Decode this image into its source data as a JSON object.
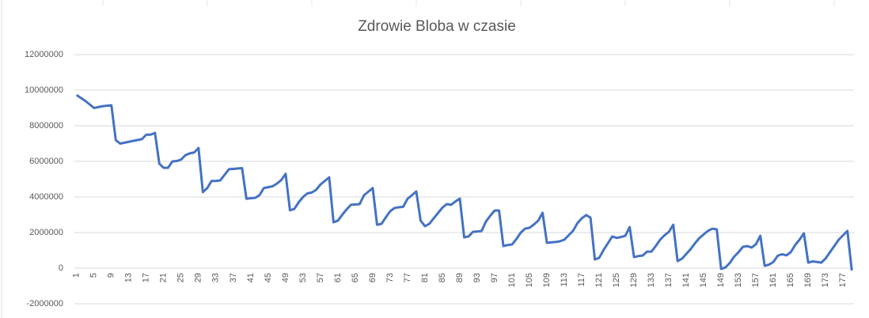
{
  "chart_data": {
    "type": "line",
    "title": "Zdrowie Bloba w czasie",
    "categories": [
      1,
      null,
      null,
      null,
      5,
      null,
      null,
      null,
      9,
      null,
      null,
      null,
      13,
      null,
      null,
      null,
      17,
      null,
      null,
      null,
      21,
      null,
      null,
      null,
      25,
      null,
      null,
      null,
      29,
      null,
      null,
      null,
      33,
      null,
      null,
      null,
      37,
      null,
      null,
      null,
      41,
      null,
      null,
      null,
      45,
      null,
      null,
      null,
      49,
      null,
      null,
      null,
      53,
      null,
      null,
      null,
      57,
      null,
      null,
      null,
      61,
      null,
      null,
      null,
      65,
      null,
      null,
      null,
      69,
      null,
      null,
      null,
      73,
      null,
      null,
      null,
      77,
      null,
      null,
      null,
      81,
      null,
      null,
      null,
      85,
      null,
      null,
      null,
      89,
      null,
      null,
      null,
      93,
      null,
      null,
      null,
      97,
      null,
      null,
      null,
      101,
      null,
      null,
      null,
      105,
      null,
      null,
      null,
      109,
      null,
      null,
      null,
      113,
      null,
      null,
      null,
      117,
      null,
      null,
      null,
      121,
      null,
      null,
      null,
      125,
      null,
      null,
      null,
      129,
      null,
      null,
      null,
      133,
      null,
      null,
      null,
      137,
      null,
      null,
      null,
      141,
      null,
      null,
      null,
      145,
      null,
      null,
      null,
      149,
      null,
      null,
      null,
      153,
      null,
      null,
      null,
      157,
      null,
      null,
      null,
      161,
      null,
      null,
      null,
      165,
      null,
      null,
      null,
      169,
      null,
      null,
      null,
      173,
      null,
      null,
      null,
      177,
      null,
      null
    ],
    "values": [
      9730000,
      9560000,
      9400000,
      9200000,
      9000000,
      9050000,
      9100000,
      9130000,
      9150000,
      7200000,
      7000000,
      7050000,
      7100000,
      7150000,
      7200000,
      7250000,
      7500000,
      7500000,
      7600000,
      5870000,
      5640000,
      5640000,
      6000000,
      6020000,
      6100000,
      6350000,
      6450000,
      6500000,
      6750000,
      4270000,
      4500000,
      4900000,
      4900000,
      4930000,
      5250000,
      5560000,
      5580000,
      5600000,
      5620000,
      3900000,
      3930000,
      3950000,
      4100000,
      4500000,
      4550000,
      4600000,
      4750000,
      4950000,
      5300000,
      3250000,
      3330000,
      3700000,
      4000000,
      4200000,
      4250000,
      4400000,
      4700000,
      4900000,
      5100000,
      2580000,
      2670000,
      3000000,
      3300000,
      3560000,
      3580000,
      3600000,
      4100000,
      4300000,
      4500000,
      2440000,
      2490000,
      2850000,
      3200000,
      3380000,
      3420000,
      3450000,
      3900000,
      4100000,
      4310000,
      2670000,
      2360000,
      2490000,
      2800000,
      3100000,
      3400000,
      3600000,
      3560000,
      3750000,
      3910000,
      1730000,
      1780000,
      2040000,
      2060000,
      2090000,
      2620000,
      2950000,
      3240000,
      3240000,
      1240000,
      1300000,
      1330000,
      1640000,
      2000000,
      2220000,
      2270000,
      2450000,
      2670000,
      3110000,
      1420000,
      1450000,
      1470000,
      1510000,
      1600000,
      1850000,
      2100000,
      2530000,
      2800000,
      2980000,
      2840000,
      490000,
      580000,
      1020000,
      1400000,
      1780000,
      1700000,
      1750000,
      1820000,
      2310000,
      620000,
      680000,
      710000,
      930000,
      930000,
      1250000,
      1600000,
      1850000,
      2040000,
      2440000,
      400000,
      530000,
      800000,
      1070000,
      1400000,
      1690000,
      1900000,
      2100000,
      2220000,
      2180000,
      -40000,
      40000,
      300000,
      650000,
      900000,
      1200000,
      1240000,
      1160000,
      1350000,
      1820000,
      130000,
      200000,
      350000,
      700000,
      780000,
      720000,
      900000,
      1300000,
      1600000,
      1960000,
      310000,
      380000,
      350000,
      310000,
      550000,
      900000,
      1250000,
      1600000,
      1850000,
      2090000,
      -130000
    ],
    "color": "#4472c4",
    "ylim": [
      -2000000,
      12000000
    ],
    "yticks": [
      -2000000,
      0,
      2000000,
      4000000,
      6000000,
      8000000,
      10000000,
      12000000
    ],
    "grid": true
  }
}
